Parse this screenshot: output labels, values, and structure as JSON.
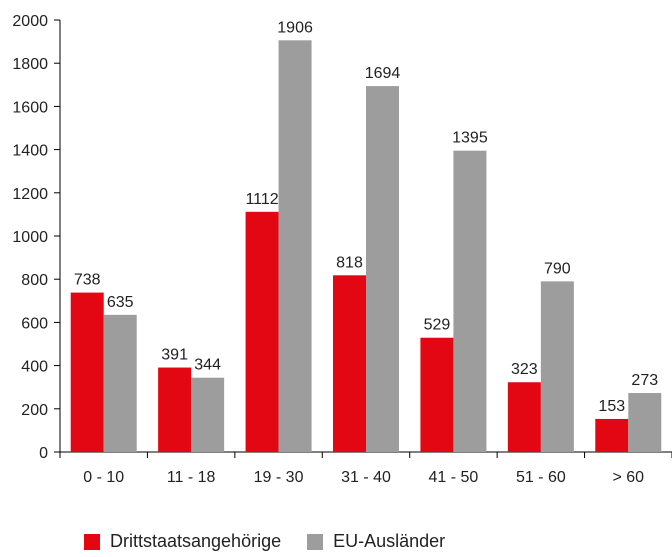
{
  "chart_data": {
    "type": "bar",
    "title": "",
    "xlabel": "",
    "ylabel": "",
    "ylim": [
      0,
      2000
    ],
    "y_ticks": [
      "0",
      "200",
      "400",
      "600",
      "800",
      "1000",
      "1200",
      "1400",
      "1600",
      "1800",
      "2000"
    ],
    "categories": [
      "0 - 10",
      "11 - 18",
      "19 - 30",
      "31 - 40",
      "41 - 50",
      "51 - 60",
      "> 60"
    ],
    "series": [
      {
        "name": "Drittstaatsangehörige",
        "color": "#e30613",
        "values": [
          738,
          391,
          1112,
          818,
          529,
          323,
          153
        ]
      },
      {
        "name": "EU-Ausländer",
        "color": "#9d9d9d",
        "values": [
          635,
          344,
          1906,
          1694,
          1395,
          790,
          273
        ]
      }
    ],
    "grid": false,
    "legend": "bottom"
  },
  "legend": {
    "items": [
      {
        "label": "Drittstaatsangehörige",
        "color": "#e30613"
      },
      {
        "label": "EU-Ausländer",
        "color": "#9d9d9d"
      }
    ]
  }
}
